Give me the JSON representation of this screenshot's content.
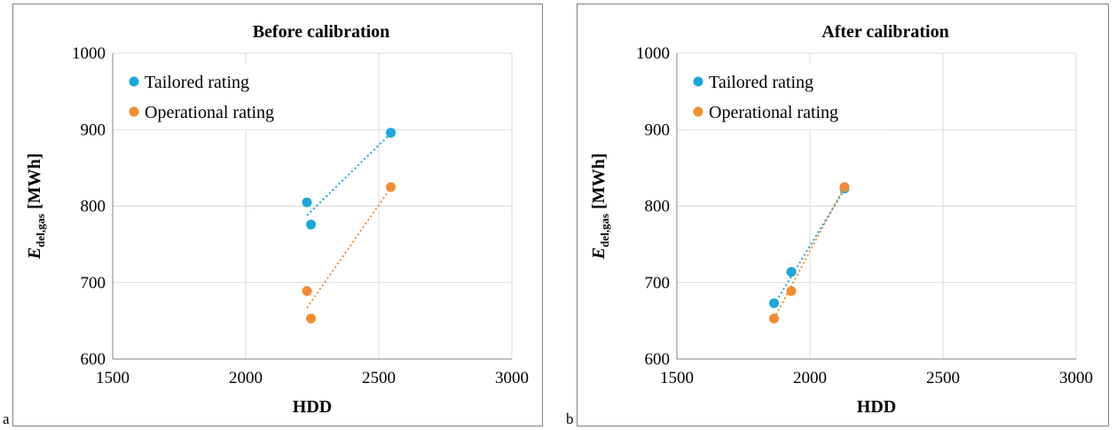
{
  "panel_letters": [
    "a",
    "b"
  ],
  "colors": {
    "tailored": "#1aa7d8",
    "operational": "#f28c30",
    "grid": "#d9d9d9",
    "axis": "#808080"
  },
  "chart_data": [
    {
      "type": "scatter",
      "title": "Before calibration",
      "xlabel": "HDD",
      "ylabel_main": "E",
      "ylabel_sub": "del,gas",
      "ylabel_unit": " [MWh]",
      "xlim": [
        1500,
        3000
      ],
      "ylim": [
        600,
        1000
      ],
      "xticks": [
        1500,
        2000,
        2500,
        3000
      ],
      "yticks": [
        600,
        700,
        800,
        900,
        1000
      ],
      "grid": true,
      "legend_position": "top-left",
      "series": [
        {
          "name": "Tailored rating",
          "color": "#1aa7d8",
          "points": [
            {
              "x": 2230,
              "y": 805
            },
            {
              "x": 2245,
              "y": 776
            },
            {
              "x": 2545,
              "y": 896
            }
          ],
          "trendline": [
            {
              "x": 2230,
              "y": 788
            },
            {
              "x": 2545,
              "y": 895
            }
          ]
        },
        {
          "name": "Operational rating",
          "color": "#f28c30",
          "points": [
            {
              "x": 2230,
              "y": 689
            },
            {
              "x": 2245,
              "y": 653
            },
            {
              "x": 2545,
              "y": 825
            }
          ],
          "trendline": [
            {
              "x": 2230,
              "y": 667
            },
            {
              "x": 2545,
              "y": 824
            }
          ]
        }
      ]
    },
    {
      "type": "scatter",
      "title": "After calibration",
      "xlabel": "HDD",
      "ylabel_main": "E",
      "ylabel_sub": "del,gas",
      "ylabel_unit": " [MWh]",
      "xlim": [
        1500,
        3000
      ],
      "ylim": [
        600,
        1000
      ],
      "xticks": [
        1500,
        2000,
        2500,
        3000
      ],
      "yticks": [
        600,
        700,
        800,
        900,
        1000
      ],
      "grid": true,
      "legend_position": "top-left",
      "series": [
        {
          "name": "Tailored rating",
          "color": "#1aa7d8",
          "points": [
            {
              "x": 1865,
              "y": 673
            },
            {
              "x": 1930,
              "y": 714
            },
            {
              "x": 2130,
              "y": 823
            }
          ],
          "trendline": [
            {
              "x": 1865,
              "y": 671
            },
            {
              "x": 2130,
              "y": 822
            }
          ]
        },
        {
          "name": "Operational rating",
          "color": "#f28c30",
          "points": [
            {
              "x": 1865,
              "y": 653
            },
            {
              "x": 1930,
              "y": 689
            },
            {
              "x": 2130,
              "y": 825
            }
          ],
          "trendline": [
            {
              "x": 1865,
              "y": 653
            },
            {
              "x": 2130,
              "y": 826
            }
          ]
        }
      ]
    }
  ]
}
